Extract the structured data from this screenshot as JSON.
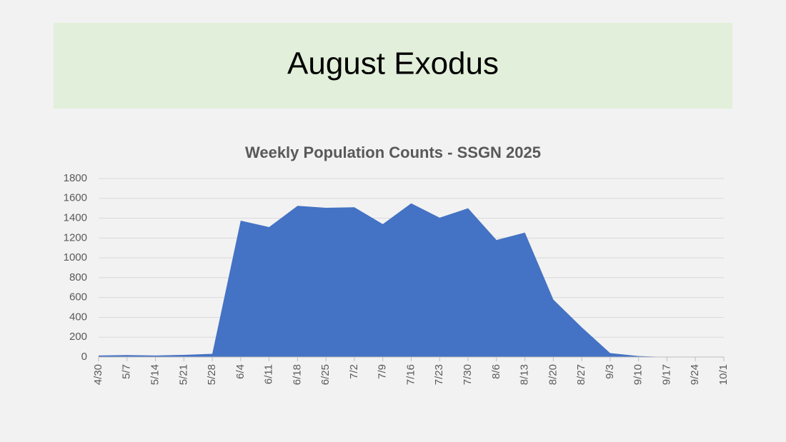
{
  "slide_title": "August Exodus",
  "chart_data": {
    "type": "area",
    "title": "Weekly Population Counts - SSGN 2025",
    "categories": [
      "4/30",
      "5/7",
      "5/14",
      "5/21",
      "5/28",
      "6/4",
      "6/11",
      "6/18",
      "6/25",
      "7/2",
      "7/9",
      "7/16",
      "7/23",
      "7/30",
      "8/6",
      "8/13",
      "8/20",
      "8/27",
      "9/3",
      "9/10",
      "9/17",
      "9/24",
      "10/1"
    ],
    "values": [
      15,
      20,
      15,
      22,
      32,
      1375,
      1310,
      1525,
      1505,
      1510,
      1340,
      1550,
      1405,
      1500,
      1180,
      1255,
      580,
      300,
      40,
      10,
      0,
      0,
      0
    ],
    "color": "#4472c4",
    "ylim": [
      0,
      1800
    ],
    "yticks": [
      0,
      200,
      400,
      600,
      800,
      1000,
      1200,
      1400,
      1600,
      1800
    ],
    "grid": true
  }
}
